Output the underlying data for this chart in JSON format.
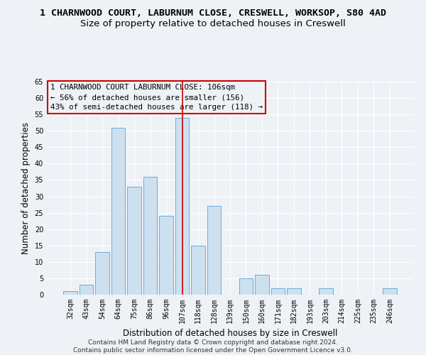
{
  "title": "1 CHARNWOOD COURT, LABURNUM CLOSE, CRESWELL, WORKSOP, S80 4AD",
  "subtitle": "Size of property relative to detached houses in Creswell",
  "xlabel": "Distribution of detached houses by size in Creswell",
  "ylabel": "Number of detached properties",
  "categories": [
    "32sqm",
    "43sqm",
    "54sqm",
    "64sqm",
    "75sqm",
    "86sqm",
    "96sqm",
    "107sqm",
    "118sqm",
    "128sqm",
    "139sqm",
    "150sqm",
    "160sqm",
    "171sqm",
    "182sqm",
    "193sqm",
    "203sqm",
    "214sqm",
    "225sqm",
    "235sqm",
    "246sqm"
  ],
  "values": [
    1,
    3,
    13,
    51,
    33,
    36,
    24,
    54,
    15,
    27,
    0,
    5,
    6,
    2,
    2,
    0,
    2,
    0,
    0,
    0,
    2
  ],
  "bar_color": "#cde0f0",
  "bar_edge_color": "#6aaed6",
  "highlight_index": 7,
  "highlight_line_color": "#cc0000",
  "ylim": [
    0,
    65
  ],
  "yticks": [
    0,
    5,
    10,
    15,
    20,
    25,
    30,
    35,
    40,
    45,
    50,
    55,
    60,
    65
  ],
  "annotation_line1": "1 CHARNWOOD COURT LABURNUM CLOSE: 106sqm",
  "annotation_line2": "← 56% of detached houses are smaller (156)",
  "annotation_line3": "43% of semi-detached houses are larger (118) →",
  "annotation_box_color": "#cc0000",
  "footer_line1": "Contains HM Land Registry data © Crown copyright and database right 2024.",
  "footer_line2": "Contains public sector information licensed under the Open Government Licence v3.0.",
  "background_color": "#eef2f7",
  "grid_color": "#ffffff",
  "title_fontsize": 9.5,
  "subtitle_fontsize": 9.5,
  "axis_label_fontsize": 8.5,
  "tick_fontsize": 7,
  "annotation_fontsize": 7.8,
  "footer_fontsize": 6.5
}
